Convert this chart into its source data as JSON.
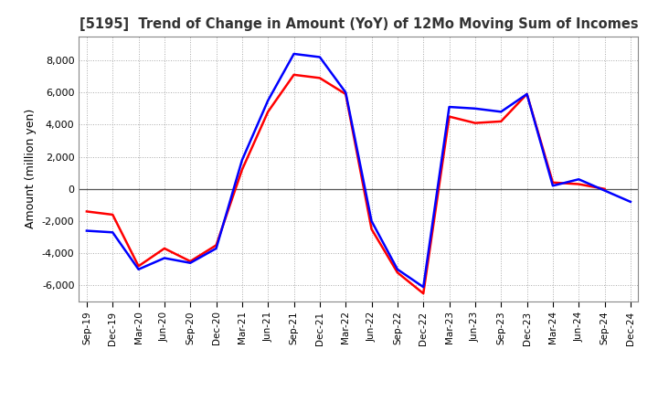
{
  "title": "[5195]  Trend of Change in Amount (YoY) of 12Mo Moving Sum of Incomes",
  "ylabel": "Amount (million yen)",
  "ylim": [
    -7000,
    9500
  ],
  "yticks": [
    -6000,
    -4000,
    -2000,
    0,
    2000,
    4000,
    6000,
    8000
  ],
  "background_color": "#ffffff",
  "grid_color": "#aaaaaa",
  "ordinary_income_color": "#0000ff",
  "net_income_color": "#ff0000",
  "x_labels": [
    "Sep-19",
    "Dec-19",
    "Mar-20",
    "Jun-20",
    "Sep-20",
    "Dec-20",
    "Mar-21",
    "Jun-21",
    "Sep-21",
    "Dec-21",
    "Mar-22",
    "Jun-22",
    "Sep-22",
    "Dec-22",
    "Mar-23",
    "Jun-23",
    "Sep-23",
    "Dec-23",
    "Mar-24",
    "Jun-24",
    "Sep-24",
    "Dec-24"
  ],
  "ordinary_income": [
    -2600,
    -2700,
    -5000,
    -4300,
    -4600,
    -3700,
    1800,
    5500,
    8400,
    8200,
    6000,
    -2000,
    -5000,
    -6100,
    5100,
    5000,
    4800,
    5900,
    200,
    600,
    -100,
    -800
  ],
  "net_income": [
    -1400,
    -1600,
    -4800,
    -3700,
    -4500,
    -3500,
    1200,
    4800,
    7100,
    6900,
    5900,
    -2500,
    -5200,
    -6500,
    4500,
    4100,
    4200,
    5900,
    400,
    300,
    0,
    null
  ],
  "line_width": 1.8
}
